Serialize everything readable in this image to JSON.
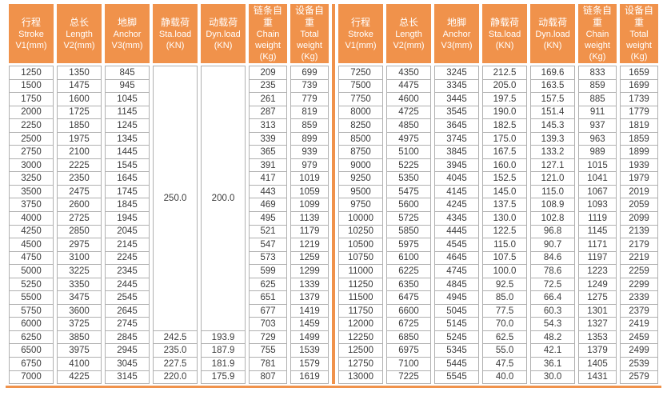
{
  "accent_color": "#F0924B",
  "border_color": "#B0B0B0",
  "header_text_color": "#FFFFFF",
  "body_text_color": "#3B3B3B",
  "tables": [
    {
      "id": "left",
      "columns": [
        {
          "lines": [
            "行程",
            "Stroke",
            "V1(mm)"
          ]
        },
        {
          "lines": [
            "总长",
            "Length",
            "V2(mm)"
          ]
        },
        {
          "lines": [
            "地脚",
            "Anchor",
            "V3(mm)"
          ]
        },
        {
          "lines": [
            "静载荷",
            "Sta.load",
            "(KN)"
          ]
        },
        {
          "lines": [
            "动载荷",
            "Dyn.load",
            "(KN)"
          ]
        },
        {
          "lines": [
            "链条自重",
            "Chain",
            "weight",
            "(Kg)"
          ]
        },
        {
          "lines": [
            "设备自重",
            "Total",
            "weight",
            "(Kg)"
          ]
        }
      ],
      "rows": [
        [
          "1250",
          "1350",
          "845",
          {
            "v": "250.0",
            "rs": 20
          },
          {
            "v": "200.0",
            "rs": 20
          },
          "209",
          "699"
        ],
        [
          "1500",
          "1475",
          "945",
          null,
          null,
          "235",
          "739"
        ],
        [
          "1750",
          "1600",
          "1045",
          null,
          null,
          "261",
          "779"
        ],
        [
          "2000",
          "1725",
          "1145",
          null,
          null,
          "287",
          "819"
        ],
        [
          "2250",
          "1850",
          "1245",
          null,
          null,
          "313",
          "859"
        ],
        [
          "2500",
          "1975",
          "1345",
          null,
          null,
          "339",
          "899"
        ],
        [
          "2750",
          "2100",
          "1445",
          null,
          null,
          "365",
          "939"
        ],
        [
          "3000",
          "2225",
          "1545",
          null,
          null,
          "391",
          "979"
        ],
        [
          "3250",
          "2350",
          "1645",
          null,
          null,
          "417",
          "1019"
        ],
        [
          "3500",
          "2475",
          "1745",
          null,
          null,
          "443",
          "1059"
        ],
        [
          "3750",
          "2600",
          "1845",
          null,
          null,
          "469",
          "1099"
        ],
        [
          "4000",
          "2725",
          "1945",
          null,
          null,
          "495",
          "1139"
        ],
        [
          "4250",
          "2850",
          "2045",
          null,
          null,
          "521",
          "1179"
        ],
        [
          "4500",
          "2975",
          "2145",
          null,
          null,
          "547",
          "1219"
        ],
        [
          "4750",
          "3100",
          "2245",
          null,
          null,
          "573",
          "1259"
        ],
        [
          "5000",
          "3225",
          "2345",
          null,
          null,
          "599",
          "1299"
        ],
        [
          "5250",
          "3350",
          "2445",
          null,
          null,
          "625",
          "1339"
        ],
        [
          "5500",
          "3475",
          "2545",
          null,
          null,
          "651",
          "1379"
        ],
        [
          "5750",
          "3600",
          "2645",
          null,
          null,
          "677",
          "1419"
        ],
        [
          "6000",
          "3725",
          "2745",
          null,
          null,
          "703",
          "1459"
        ],
        [
          "6250",
          "3850",
          "2845",
          "242.5",
          "193.9",
          "729",
          "1499"
        ],
        [
          "6500",
          "3975",
          "2945",
          "235.0",
          "187.9",
          "755",
          "1539"
        ],
        [
          "6750",
          "4100",
          "3045",
          "227.5",
          "181.9",
          "781",
          "1579"
        ],
        [
          "7000",
          "4225",
          "3145",
          "220.0",
          "175.9",
          "807",
          "1619"
        ]
      ]
    },
    {
      "id": "right",
      "columns": [
        {
          "lines": [
            "行程",
            "Stroke",
            "V1(mm)"
          ]
        },
        {
          "lines": [
            "总长",
            "Length",
            "V2(mm)"
          ]
        },
        {
          "lines": [
            "地脚",
            "Anchor",
            "V3(mm)"
          ]
        },
        {
          "lines": [
            "静载荷",
            "Sta.load",
            "(KN)"
          ]
        },
        {
          "lines": [
            "动载荷",
            "Dyn.load",
            "(KN)"
          ]
        },
        {
          "lines": [
            "链条自重",
            "Chain",
            "weight",
            "(Kg)"
          ]
        },
        {
          "lines": [
            "设备自重",
            "Total",
            "weight",
            "(Kg)"
          ]
        }
      ],
      "rows": [
        [
          "7250",
          "4350",
          "3245",
          "212.5",
          "169.6",
          "833",
          "1659"
        ],
        [
          "7500",
          "4475",
          "3345",
          "205.0",
          "163.5",
          "859",
          "1699"
        ],
        [
          "7750",
          "4600",
          "3445",
          "197.5",
          "157.5",
          "885",
          "1739"
        ],
        [
          "8000",
          "4725",
          "3545",
          "190.0",
          "151.4",
          "911",
          "1779"
        ],
        [
          "8250",
          "4850",
          "3645",
          "182.5",
          "145.3",
          "937",
          "1819"
        ],
        [
          "8500",
          "4975",
          "3745",
          "175.0",
          "139.3",
          "963",
          "1859"
        ],
        [
          "8750",
          "5100",
          "3845",
          "167.5",
          "133.2",
          "989",
          "1899"
        ],
        [
          "9000",
          "5225",
          "3945",
          "160.0",
          "127.1",
          "1015",
          "1939"
        ],
        [
          "9250",
          "5350",
          "4045",
          "152.5",
          "121.0",
          "1041",
          "1979"
        ],
        [
          "9500",
          "5475",
          "4145",
          "145.0",
          "115.0",
          "1067",
          "2019"
        ],
        [
          "9750",
          "5600",
          "4245",
          "137.5",
          "108.9",
          "1093",
          "2059"
        ],
        [
          "10000",
          "5725",
          "4345",
          "130.0",
          "102.8",
          "1119",
          "2099"
        ],
        [
          "10250",
          "5850",
          "4445",
          "122.5",
          "96.8",
          "1145",
          "2139"
        ],
        [
          "10500",
          "5975",
          "4545",
          "115.0",
          "90.7",
          "1171",
          "2179"
        ],
        [
          "10750",
          "6100",
          "4645",
          "107.5",
          "84.6",
          "1197",
          "2219"
        ],
        [
          "11000",
          "6225",
          "4745",
          "100.0",
          "78.6",
          "1223",
          "2259"
        ],
        [
          "11250",
          "6350",
          "4845",
          "92.5",
          "72.5",
          "1249",
          "2299"
        ],
        [
          "11500",
          "6475",
          "4945",
          "85.0",
          "66.4",
          "1275",
          "2339"
        ],
        [
          "11750",
          "6600",
          "5045",
          "77.5",
          "60.3",
          "1301",
          "2379"
        ],
        [
          "12000",
          "6725",
          "5145",
          "70.0",
          "54.3",
          "1327",
          "2419"
        ],
        [
          "12250",
          "6850",
          "5245",
          "62.5",
          "48.2",
          "1353",
          "2459"
        ],
        [
          "12500",
          "6975",
          "5345",
          "55.0",
          "42.1",
          "1379",
          "2499"
        ],
        [
          "12750",
          "7100",
          "5445",
          "47.5",
          "36.1",
          "1405",
          "2539"
        ],
        [
          "13000",
          "7225",
          "5545",
          "40.0",
          "30.0",
          "1431",
          "2579"
        ]
      ]
    }
  ]
}
